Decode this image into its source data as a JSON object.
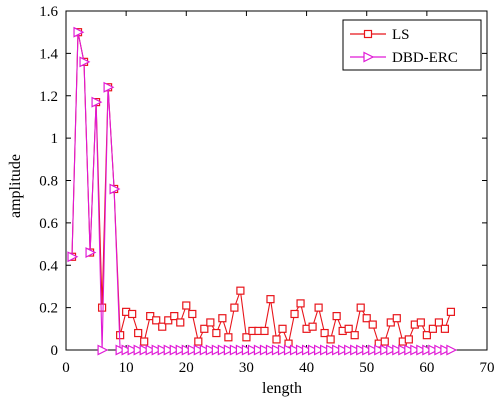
{
  "chart_data": {
    "type": "line",
    "xlabel": "length",
    "ylabel": "amplitude",
    "xlim": [
      0,
      70
    ],
    "ylim": [
      0,
      1.6
    ],
    "x_ticks": [
      0,
      10,
      20,
      30,
      40,
      50,
      60,
      70
    ],
    "x_tick_labels": [
      "0",
      "10",
      "20",
      "30",
      "40",
      "50",
      "60",
      "70"
    ],
    "y_ticks": [
      0,
      0.2,
      0.4,
      0.6,
      0.8,
      1,
      1.2,
      1.4,
      1.6
    ],
    "y_tick_labels": [
      "0",
      "0.2",
      "0.4",
      "0.6",
      "0.8",
      "1",
      "1.2",
      "1.4",
      "1.6"
    ],
    "grid": false,
    "legend_position": "top-right",
    "series": [
      {
        "name": "LS",
        "color": "#e8151b",
        "marker": "square",
        "x": [
          1,
          2,
          3,
          4,
          5,
          6,
          7,
          8,
          9,
          10,
          11,
          12,
          13,
          14,
          15,
          16,
          17,
          18,
          19,
          20,
          21,
          22,
          23,
          24,
          25,
          26,
          27,
          28,
          29,
          30,
          31,
          32,
          33,
          34,
          35,
          36,
          37,
          38,
          39,
          40,
          41,
          42,
          43,
          44,
          45,
          46,
          47,
          48,
          49,
          50,
          51,
          52,
          53,
          54,
          55,
          56,
          57,
          58,
          59,
          60,
          61,
          62,
          63,
          64
        ],
        "values": [
          0.44,
          1.5,
          1.36,
          0.46,
          1.17,
          0.2,
          1.24,
          0.76,
          0.07,
          0.18,
          0.17,
          0.08,
          0.04,
          0.16,
          0.14,
          0.11,
          0.14,
          0.16,
          0.13,
          0.21,
          0.17,
          0.04,
          0.1,
          0.13,
          0.08,
          0.15,
          0.06,
          0.2,
          0.28,
          0.06,
          0.09,
          0.09,
          0.09,
          0.24,
          0.05,
          0.1,
          0.03,
          0.17,
          0.22,
          0.1,
          0.11,
          0.2,
          0.08,
          0.05,
          0.16,
          0.09,
          0.1,
          0.07,
          0.2,
          0.15,
          0.12,
          0.03,
          0.04,
          0.13,
          0.15,
          0.04,
          0.05,
          0.12,
          0.13,
          0.07,
          0.1,
          0.13,
          0.1,
          0.18
        ]
      },
      {
        "name": "DBD-ERC",
        "color": "#e01ad6",
        "marker": "triangle-right",
        "x": [
          1,
          2,
          3,
          4,
          5,
          6,
          7,
          8,
          9,
          10,
          11,
          12,
          13,
          14,
          15,
          16,
          17,
          18,
          19,
          20,
          21,
          22,
          23,
          24,
          25,
          26,
          27,
          28,
          29,
          30,
          31,
          32,
          33,
          34,
          35,
          36,
          37,
          38,
          39,
          40,
          41,
          42,
          43,
          44,
          45,
          46,
          47,
          48,
          49,
          50,
          51,
          52,
          53,
          54,
          55,
          56,
          57,
          58,
          59,
          60,
          61,
          62,
          63,
          64
        ],
        "values": [
          0.44,
          1.5,
          1.36,
          0.46,
          1.17,
          0,
          1.24,
          0.76,
          0,
          0,
          0,
          0,
          0,
          0,
          0,
          0,
          0,
          0,
          0,
          0,
          0,
          0,
          0,
          0,
          0,
          0,
          0,
          0,
          0,
          0,
          0,
          0,
          0,
          0,
          0,
          0,
          0,
          0,
          0,
          0,
          0,
          0,
          0,
          0,
          0,
          0,
          0,
          0,
          0,
          0,
          0,
          0,
          0,
          0,
          0,
          0,
          0,
          0,
          0,
          0,
          0,
          0,
          0,
          0
        ]
      }
    ]
  }
}
